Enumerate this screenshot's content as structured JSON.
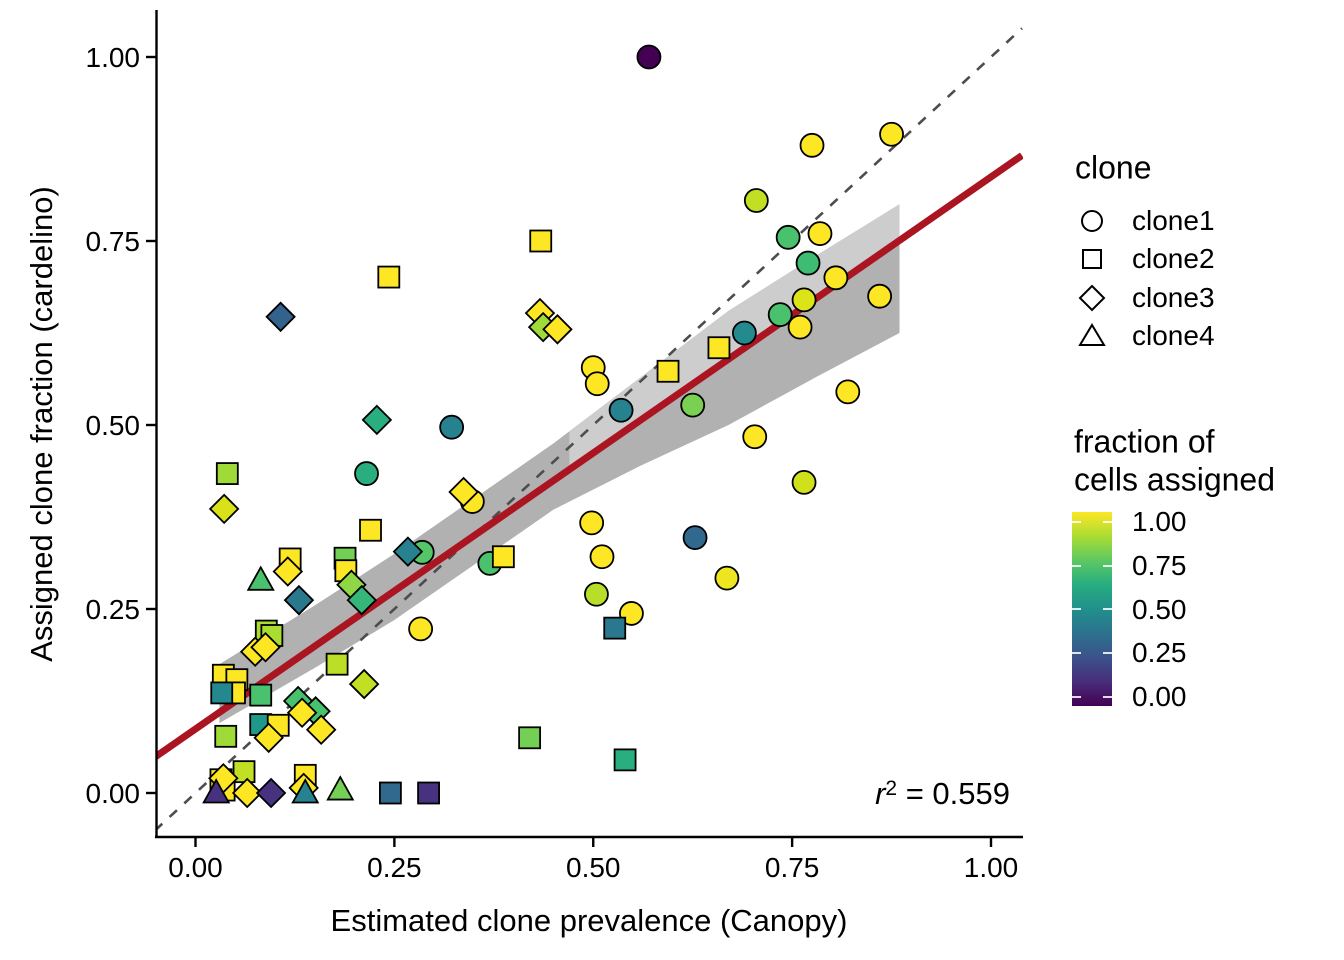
{
  "figure": {
    "annotation": {
      "r": "r",
      "exponent": "2",
      "equals_value": " = 0.559"
    },
    "x_axis": {
      "title": "Estimated clone prevalence (Canopy)"
    },
    "y_axis": {
      "title": "Assigned clone fraction (cardelino)"
    },
    "clone_legend": {
      "title": "clone",
      "items": [
        {
          "shape": "circle",
          "label": "clone1"
        },
        {
          "shape": "square",
          "label": "clone2"
        },
        {
          "shape": "diamond",
          "label": "clone3"
        },
        {
          "shape": "triangle",
          "label": "clone4"
        }
      ]
    },
    "color_legend": {
      "title_line1": "fraction of",
      "title_line2": "cells assigned",
      "labels": [
        "1.00",
        "0.75",
        "0.50",
        "0.25",
        "0.00"
      ],
      "gradient_stops": [
        "#FDE725",
        "#AADC32",
        "#5DC863",
        "#27AD81",
        "#21908C",
        "#2C728E",
        "#3B528B",
        "#472D7B",
        "#440154"
      ]
    }
  },
  "chart_data": {
    "type": "scatter",
    "title": "",
    "xlabel": "Estimated clone prevalence (Canopy)",
    "ylabel": "Assigned clone fraction (cardelino)",
    "xlim": [
      -0.051,
      1.039
    ],
    "ylim": [
      -0.06,
      1.06
    ],
    "x_tick_values": [
      0,
      0.25,
      0.5,
      0.75,
      1.0
    ],
    "x_tick_labels": [
      "0.00",
      "0.25",
      "0.50",
      "0.75",
      "1.00"
    ],
    "y_tick_values": [
      0,
      0.25,
      0.5,
      0.75,
      1.0
    ],
    "y_tick_labels": [
      "0.00",
      "0.25",
      "0.50",
      "0.75",
      "1.00"
    ],
    "grid": false,
    "legend_position": "right",
    "annotation": "r^2 = 0.559",
    "color_scale": {
      "name": "fraction of cells assigned",
      "range": [
        0,
        1
      ],
      "palette": "viridis"
    },
    "identity_line": {
      "style": "dashed",
      "color": "#4D4D4D",
      "from": [
        -0.051,
        -0.051
      ],
      "to": [
        1.039,
        1.039
      ]
    },
    "regression_line": {
      "slope": 0.75,
      "intercept": 0.087,
      "color": "#AB1421",
      "x_range": [
        -0.051,
        1.039
      ]
    },
    "confidence_ribbon": {
      "color": "#B1B1B1",
      "light_color": "#CDCDCD",
      "light_x": [
        0.47,
        0.55,
        0.67,
        0.78,
        0.885
      ],
      "x": [
        0.03,
        0.15,
        0.25,
        0.35,
        0.45,
        0.56,
        0.67,
        0.78,
        0.885
      ],
      "upper": [
        0.175,
        0.255,
        0.325,
        0.4,
        0.475,
        0.565,
        0.655,
        0.73,
        0.8
      ],
      "lower": [
        0.095,
        0.17,
        0.235,
        0.31,
        0.385,
        0.445,
        0.5,
        0.565,
        0.625
      ]
    },
    "point_format": [
      "x",
      "y",
      "color"
    ],
    "series": [
      {
        "name": "clone1",
        "shape": "circle",
        "points": [
          [
            0.57,
            1.0,
            "#440154"
          ],
          [
            0.775,
            0.88,
            "#FDE725"
          ],
          [
            0.875,
            0.895,
            "#FDE725"
          ],
          [
            0.705,
            0.805,
            "#C2DF23"
          ],
          [
            0.745,
            0.755,
            "#4AC16D"
          ],
          [
            0.785,
            0.76,
            "#FDE725"
          ],
          [
            0.77,
            0.72,
            "#3FBC73"
          ],
          [
            0.805,
            0.7,
            "#FDE725"
          ],
          [
            0.765,
            0.67,
            "#DCE319"
          ],
          [
            0.86,
            0.675,
            "#FDE725"
          ],
          [
            0.735,
            0.65,
            "#4AC16D"
          ],
          [
            0.76,
            0.633,
            "#FDE725"
          ],
          [
            0.69,
            0.625,
            "#238A8D"
          ],
          [
            0.82,
            0.545,
            "#FDE725"
          ],
          [
            0.625,
            0.527,
            "#7AD151"
          ],
          [
            0.535,
            0.52,
            "#26828E"
          ],
          [
            0.5,
            0.578,
            "#FDE725"
          ],
          [
            0.505,
            0.556,
            "#FDE725"
          ],
          [
            0.703,
            0.484,
            "#FDE725"
          ],
          [
            0.765,
            0.422,
            "#D0E11C"
          ],
          [
            0.628,
            0.347,
            "#31688E"
          ],
          [
            0.668,
            0.292,
            "#EDE51F"
          ],
          [
            0.322,
            0.497,
            "#26828E"
          ],
          [
            0.215,
            0.434,
            "#29AF7F"
          ],
          [
            0.285,
            0.327,
            "#55C667"
          ],
          [
            0.37,
            0.312,
            "#4AC16D"
          ],
          [
            0.348,
            0.396,
            "#FDE725"
          ],
          [
            0.283,
            0.223,
            "#FDE725"
          ],
          [
            0.498,
            0.367,
            "#FDE725"
          ],
          [
            0.511,
            0.321,
            "#FDE725"
          ],
          [
            0.504,
            0.27,
            "#B8DE29"
          ],
          [
            0.548,
            0.244,
            "#FDE725"
          ]
        ]
      },
      {
        "name": "clone2",
        "shape": "square",
        "points": [
          [
            0.434,
            0.75,
            "#FDE725"
          ],
          [
            0.243,
            0.701,
            "#FDE725"
          ],
          [
            0.594,
            0.573,
            "#FDE725"
          ],
          [
            0.658,
            0.605,
            "#FDE725"
          ],
          [
            0.04,
            0.434,
            "#A0DA39"
          ],
          [
            0.22,
            0.357,
            "#FDE725"
          ],
          [
            0.119,
            0.318,
            "#FDE725"
          ],
          [
            0.188,
            0.319,
            "#73D055"
          ],
          [
            0.189,
            0.302,
            "#FDE725"
          ],
          [
            0.387,
            0.321,
            "#FDE725"
          ],
          [
            0.527,
            0.224,
            "#2A788E"
          ],
          [
            0.42,
            0.075,
            "#73D055"
          ],
          [
            0.54,
            0.045,
            "#29AF7F"
          ],
          [
            0.089,
            0.22,
            "#AADC32"
          ],
          [
            0.096,
            0.214,
            "#AADC32"
          ],
          [
            0.178,
            0.175,
            "#BBDF27"
          ],
          [
            0.035,
            0.16,
            "#FDE725"
          ],
          [
            0.052,
            0.154,
            "#FDE725"
          ],
          [
            0.049,
            0.136,
            "#FDE725"
          ],
          [
            0.033,
            0.136,
            "#23898E"
          ],
          [
            0.082,
            0.133,
            "#4AC16D"
          ],
          [
            0.038,
            0.077,
            "#A0DA39"
          ],
          [
            0.082,
            0.093,
            "#1F9A8A"
          ],
          [
            0.104,
            0.092,
            "#FDE725"
          ],
          [
            0.061,
            0.029,
            "#C2DF23"
          ],
          [
            0.032,
            0.018,
            "#FDE725"
          ],
          [
            0.036,
            0.004,
            "#FDE725"
          ],
          [
            0.138,
            0.024,
            "#FDE725"
          ],
          [
            0.245,
            0.0,
            "#31688E"
          ],
          [
            0.293,
            0.0,
            "#46327E"
          ]
        ]
      },
      {
        "name": "clone3",
        "shape": "diamond",
        "points": [
          [
            0.107,
            0.647,
            "#33638D"
          ],
          [
            0.433,
            0.652,
            "#FDE725"
          ],
          [
            0.437,
            0.633,
            "#A0DA39"
          ],
          [
            0.455,
            0.63,
            "#FDE725"
          ],
          [
            0.228,
            0.507,
            "#29AF7F"
          ],
          [
            0.036,
            0.386,
            "#D8E219"
          ],
          [
            0.337,
            0.409,
            "#FDE725"
          ],
          [
            0.267,
            0.328,
            "#26828E"
          ],
          [
            0.196,
            0.283,
            "#8FD744"
          ],
          [
            0.209,
            0.262,
            "#35B779"
          ],
          [
            0.13,
            0.262,
            "#2A788E"
          ],
          [
            0.116,
            0.301,
            "#FDE725"
          ],
          [
            0.075,
            0.192,
            "#FDE725"
          ],
          [
            0.088,
            0.198,
            "#FDE725"
          ],
          [
            0.212,
            0.148,
            "#C2DF23"
          ],
          [
            0.129,
            0.125,
            "#47C16E"
          ],
          [
            0.151,
            0.111,
            "#47C16E"
          ],
          [
            0.134,
            0.109,
            "#FDE725"
          ],
          [
            0.158,
            0.086,
            "#FDE725"
          ],
          [
            0.092,
            0.075,
            "#FDE725"
          ],
          [
            0.035,
            0.02,
            "#FDE725"
          ],
          [
            0.065,
            0.0,
            "#FDE725"
          ],
          [
            0.095,
            0.0,
            "#46327E"
          ],
          [
            0.136,
            0.007,
            "#FDE725"
          ]
        ]
      },
      {
        "name": "clone4",
        "shape": "triangle",
        "points": [
          [
            0.082,
            0.289,
            "#4AC16D"
          ],
          [
            0.026,
            0.0,
            "#46327E"
          ],
          [
            0.138,
            0.0,
            "#26828E"
          ],
          [
            0.182,
            0.004,
            "#73D055"
          ]
        ]
      }
    ]
  }
}
